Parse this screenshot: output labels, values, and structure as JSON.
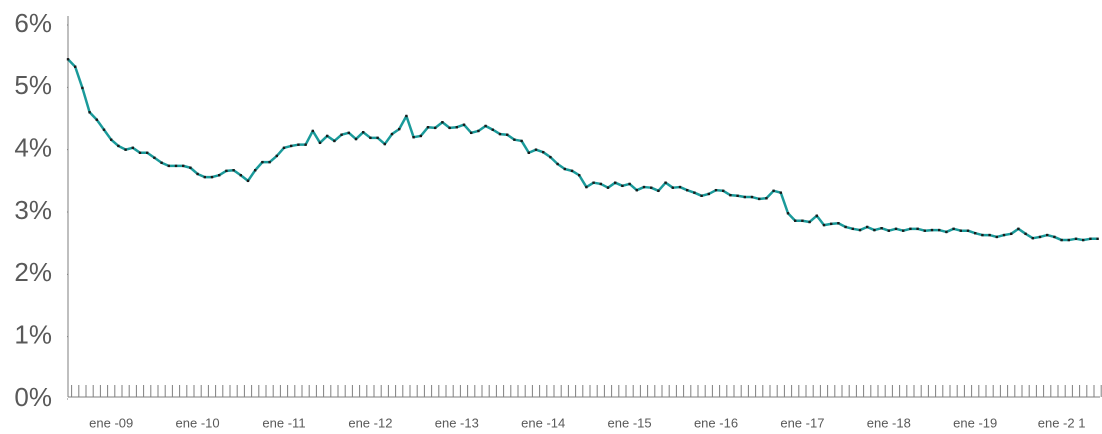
{
  "chart_data": {
    "type": "line",
    "categories": [
      null,
      null,
      null,
      null,
      null,
      null,
      "ene -09",
      null,
      null,
      null,
      null,
      null,
      null,
      null,
      null,
      null,
      null,
      null,
      "ene -10",
      null,
      null,
      null,
      null,
      null,
      null,
      null,
      null,
      null,
      null,
      null,
      "ene -11",
      null,
      null,
      null,
      null,
      null,
      null,
      null,
      null,
      null,
      null,
      null,
      "ene -12",
      null,
      null,
      null,
      null,
      null,
      null,
      null,
      null,
      null,
      null,
      null,
      "ene -13",
      null,
      null,
      null,
      null,
      null,
      null,
      null,
      null,
      null,
      null,
      null,
      "ene -14",
      null,
      null,
      null,
      null,
      null,
      null,
      null,
      null,
      null,
      null,
      null,
      "ene -15",
      null,
      null,
      null,
      null,
      null,
      null,
      null,
      null,
      null,
      null,
      null,
      "ene -16",
      null,
      null,
      null,
      null,
      null,
      null,
      null,
      null,
      null,
      null,
      null,
      "ene -17",
      null,
      null,
      null,
      null,
      null,
      null,
      null,
      null,
      null,
      null,
      null,
      "ene -18",
      null,
      null,
      null,
      null,
      null,
      null,
      null,
      null,
      null,
      null,
      null,
      "ene -19",
      null,
      null,
      null,
      null,
      null,
      null,
      null,
      null,
      null,
      null,
      null,
      "ene -2 1",
      null,
      null,
      null,
      null,
      null
    ],
    "series": [
      {
        "color": "#1a9a9a",
        "marker_color": "#1a1a1a",
        "values": [
          5.45,
          5.33,
          4.99,
          4.6,
          4.48,
          4.32,
          4.16,
          4.06,
          4.0,
          4.03,
          3.95,
          3.95,
          3.87,
          3.79,
          3.74,
          3.74,
          3.74,
          3.71,
          3.61,
          3.56,
          3.56,
          3.59,
          3.66,
          3.67,
          3.59,
          3.5,
          3.67,
          3.8,
          3.8,
          3.9,
          4.03,
          4.06,
          4.08,
          4.08,
          4.3,
          4.11,
          4.22,
          4.14,
          4.24,
          4.27,
          4.17,
          4.28,
          4.19,
          4.19,
          4.09,
          4.25,
          4.33,
          4.54,
          4.2,
          4.22,
          4.36,
          4.35,
          4.44,
          4.35,
          4.36,
          4.4,
          4.27,
          4.3,
          4.38,
          4.32,
          4.25,
          4.24,
          4.16,
          4.14,
          3.95,
          4.0,
          3.96,
          3.88,
          3.77,
          3.69,
          3.66,
          3.59,
          3.4,
          3.47,
          3.45,
          3.39,
          3.47,
          3.42,
          3.45,
          3.35,
          3.4,
          3.39,
          3.34,
          3.47,
          3.39,
          3.4,
          3.35,
          3.31,
          3.26,
          3.29,
          3.35,
          3.34,
          3.27,
          3.26,
          3.24,
          3.24,
          3.21,
          3.22,
          3.34,
          3.31,
          2.98,
          2.86,
          2.86,
          2.84,
          2.94,
          2.79,
          2.81,
          2.82,
          2.76,
          2.73,
          2.71,
          2.76,
          2.71,
          2.74,
          2.7,
          2.73,
          2.7,
          2.73,
          2.73,
          2.7,
          2.71,
          2.71,
          2.68,
          2.73,
          2.7,
          2.7,
          2.66,
          2.63,
          2.63,
          2.6,
          2.63,
          2.65,
          2.73,
          2.65,
          2.58,
          2.6,
          2.63,
          2.6,
          2.55,
          2.55,
          2.57,
          2.55,
          2.57,
          2.57
        ]
      }
    ],
    "ylim": [
      0,
      6
    ],
    "yticks": [
      {
        "value": 0,
        "label": "0%"
      },
      {
        "value": 1,
        "label": "1%"
      },
      {
        "value": 2,
        "label": "2%"
      },
      {
        "value": 3,
        "label": "3%"
      },
      {
        "value": 4,
        "label": "4%"
      },
      {
        "value": 5,
        "label": "5%"
      },
      {
        "value": 6,
        "label": "6%"
      }
    ],
    "grid": false
  }
}
